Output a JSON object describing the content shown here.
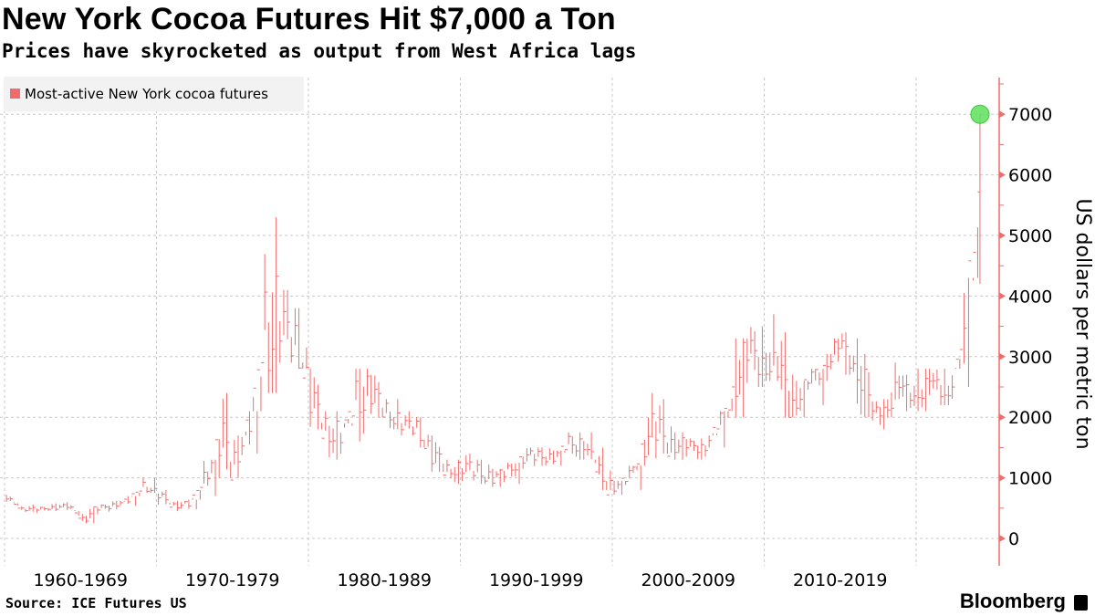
{
  "chart_data": {
    "type": "bar",
    "title": "New York Cocoa Futures Hit $7,000 a Ton",
    "subtitle": "Prices have skyrocketed as output from West Africa lags",
    "ylabel": "US dollars per metric ton",
    "ylim": [
      0,
      7600
    ],
    "yticks": [
      "0",
      "1000",
      "2000",
      "3000",
      "4000",
      "5000",
      "6000",
      "7000"
    ],
    "xlim": [
      1960,
      2025.5
    ],
    "xtick_labels": [
      "1960-1969",
      "1970-1979",
      "1980-1989",
      "1990-1999",
      "2000-2009",
      "2010-2019"
    ],
    "grid": true,
    "legend_position": "top-left",
    "series": [
      {
        "name": "Most-active New York cocoa futures",
        "color": "#f06c6c",
        "x": [
          1960,
          1961,
          1962,
          1963,
          1964,
          1965,
          1966,
          1967,
          1968,
          1969,
          1970,
          1971,
          1972,
          1973,
          1974,
          1975,
          1976,
          1977,
          1978,
          1979,
          1980,
          1981,
          1982,
          1983,
          1984,
          1985,
          1986,
          1987,
          1988,
          1989,
          1990,
          1991,
          1992,
          1993,
          1994,
          1995,
          1996,
          1997,
          1998,
          1999,
          2000,
          2001,
          2002,
          2003,
          2004,
          2005,
          2006,
          2007,
          2008,
          2009,
          2010,
          2011,
          2012,
          2013,
          2014,
          2015,
          2016,
          2017,
          2018,
          2019,
          2020,
          2021,
          2022,
          2023,
          2024.2
        ],
        "value": [
          650,
          500,
          470,
          520,
          520,
          330,
          480,
          560,
          620,
          900,
          700,
          550,
          560,
          1000,
          1600,
          1300,
          1900,
          3500,
          3500,
          3300,
          2300,
          1800,
          1700,
          2300,
          2400,
          2100,
          1900,
          1800,
          1400,
          1100,
          1200,
          1100,
          1000,
          1100,
          1350,
          1350,
          1350,
          1550,
          1600,
          1000,
          850,
          1000,
          1700,
          1700,
          1550,
          1500,
          1550,
          1900,
          2700,
          3000,
          3000,
          2500,
          2300,
          2600,
          3000,
          3100,
          2900,
          2000,
          2300,
          2400,
          2450,
          2500,
          2450,
          3200,
          7000
        ],
        "high": [
          720,
          560,
          520,
          580,
          600,
          520,
          560,
          620,
          700,
          1000,
          800,
          620,
          640,
          1300,
          2400,
          1700,
          2100,
          5300,
          4100,
          3800,
          2800,
          2100,
          1900,
          2800,
          2700,
          2300,
          2100,
          2000,
          1700,
          1300,
          1400,
          1300,
          1150,
          1250,
          1500,
          1500,
          1450,
          1750,
          1750,
          1500,
          950,
          1200,
          2400,
          2300,
          1750,
          1650,
          1700,
          2100,
          3300,
          3500,
          3700,
          3400,
          2600,
          2800,
          3300,
          3400,
          3300,
          2300,
          2900,
          2700,
          2800,
          2800,
          2800,
          4300,
          7000
        ],
        "low": [
          580,
          440,
          420,
          450,
          450,
          250,
          400,
          480,
          540,
          750,
          560,
          450,
          480,
          700,
          1000,
          1000,
          1400,
          2400,
          2900,
          2800,
          1800,
          1300,
          1400,
          1600,
          2000,
          1800,
          1700,
          1500,
          1100,
          900,
          950,
          900,
          850,
          900,
          1150,
          1200,
          1200,
          1300,
          1300,
          800,
          720,
          800,
          1200,
          1400,
          1300,
          1300,
          1350,
          1500,
          2000,
          2500,
          2600,
          2000,
          2000,
          2200,
          2600,
          2700,
          2000,
          1800,
          2000,
          2100,
          2100,
          2200,
          2200,
          2500,
          4200
        ]
      }
    ],
    "highlight": {
      "x": 2024.2,
      "value": 7000,
      "color": "#5ee05e"
    }
  },
  "source": "Source: ICE Futures US",
  "brand": "Bloomberg",
  "colors": {
    "series": "#f06c6c",
    "axis": "#f06c6c",
    "grid": "#c8c8c8",
    "legend_bg": "#f2f2f2",
    "highlight": "#5ee05e"
  }
}
